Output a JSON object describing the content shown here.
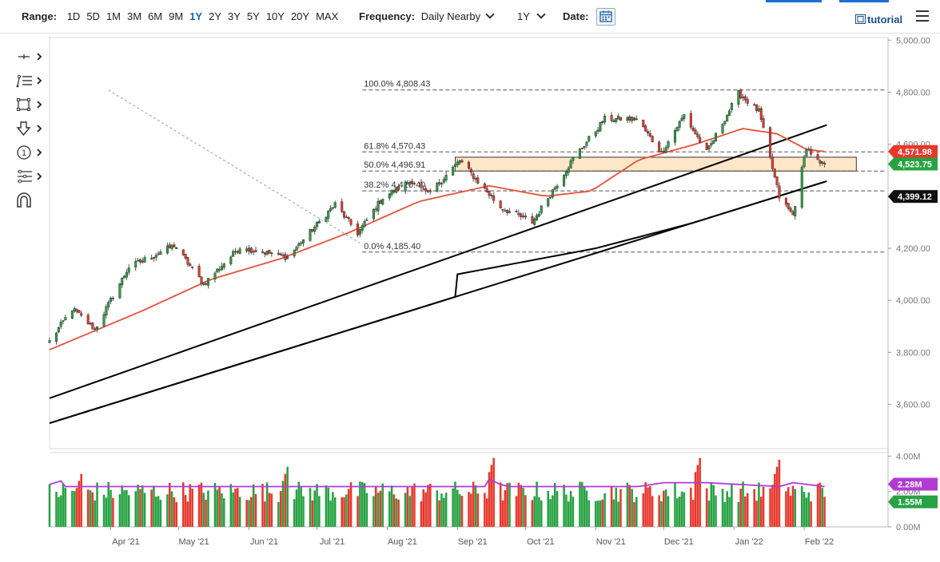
{
  "toolbar": {
    "range_label": "Range:",
    "ranges": [
      "1D",
      "5D",
      "1M",
      "3M",
      "6M",
      "9M",
      "1Y",
      "2Y",
      "3Y",
      "5Y",
      "10Y",
      "20Y",
      "MAX"
    ],
    "active_range": "1Y",
    "frequency_label": "Frequency:",
    "frequency_value": "Daily Nearby",
    "period_value": "1Y",
    "date_label": "Date:",
    "tutorial_label": "tutorial"
  },
  "tools": [
    "crosshair-tool",
    "line-tool",
    "rectangle-tool",
    "arrow-tool",
    "count-tool",
    "fibonacci-tool",
    "magnet-tool"
  ],
  "colors": {
    "up": "#27a243",
    "down": "#e8382c",
    "ma_fast": "#e8503a",
    "ma_slow": "#000000",
    "volume_avg": "#b13ad3",
    "zone_fill": "#fde7c7",
    "price_badge_red": "#e8382c",
    "price_badge_green": "#27a243",
    "price_badge_black": "#111111",
    "volume_badge": "#b13ad3"
  },
  "chart_data": {
    "type": "candlestick",
    "x_tick_labels": [
      "Apr '21",
      "May '21",
      "Jun '21",
      "Jul '21",
      "Aug '21",
      "Sep '21",
      "Oct '21",
      "Nov '21",
      "Dec '21",
      "Jan '22",
      "Feb '22"
    ],
    "y_tick_labels": [
      "5,000.00",
      "4,800.00",
      "4,600.00",
      "4,400.00",
      "4,200.00",
      "4,000.00",
      "3,800.00",
      "3,600.00"
    ],
    "y_ticks": [
      5000,
      4800,
      4600,
      4400,
      4200,
      4000,
      3800,
      3600
    ],
    "ylim": [
      3430,
      5010
    ],
    "volume_tick_labels": [
      "4.00M",
      "2.00M",
      "0.00M"
    ],
    "volume_ticks": [
      4,
      2,
      0
    ],
    "volume_ylim": [
      0,
      4.2
    ],
    "fibonacci_levels": [
      {
        "label": "100.0% 4,808.43",
        "value": 4808.43
      },
      {
        "label": "61.8% 4,570.43",
        "value": 4570.43
      },
      {
        "label": "50.0% 4,496.91",
        "value": 4496.91
      },
      {
        "label": "38.2% 4,420.40",
        "value": 4420.4
      },
      {
        "label": "0.0% 4,185.40",
        "value": 4185.4
      }
    ],
    "price_badges": [
      {
        "label": "4,571.98",
        "value": 4571.98,
        "color": "red"
      },
      {
        "label": "4,523.75",
        "value": 4523.75,
        "color": "green"
      },
      {
        "label": "4,399.12",
        "value": 4399.12,
        "color": "black"
      }
    ],
    "volume_badges": [
      {
        "label": "2.28M",
        "value": 2.28,
        "color": "purple"
      },
      {
        "label": "1.55M",
        "value": 1.55,
        "color": "green"
      }
    ],
    "zone": {
      "low": 4496.91,
      "high": 4550
    },
    "trendlines": [
      {
        "from": [
          "2021-03-05",
          3624
        ],
        "to": [
          "2022-02-11",
          4674
        ]
      },
      {
        "from": [
          "2021-03-05",
          3528
        ],
        "to": [
          "2022-02-11",
          4458
        ]
      }
    ],
    "dashed_line": {
      "from": [
        "2021-03-31",
        4808
      ],
      "to": [
        "2021-07-20",
        4220
      ]
    },
    "monthly_anchors": [
      [
        "2021-03-05",
        3842
      ],
      [
        "2021-03-15",
        3968
      ],
      [
        "2021-03-25",
        3889
      ],
      [
        "2021-04-09",
        4128
      ],
      [
        "2021-04-29",
        4211
      ],
      [
        "2021-05-12",
        4063
      ],
      [
        "2021-05-28",
        4204
      ],
      [
        "2021-06-18",
        4166
      ],
      [
        "2021-07-09",
        4369
      ],
      [
        "2021-07-19",
        4258
      ],
      [
        "2021-07-30",
        4395
      ],
      [
        "2021-08-12",
        4460
      ],
      [
        "2021-08-19",
        4405
      ],
      [
        "2021-09-02",
        4537
      ],
      [
        "2021-09-20",
        4357
      ],
      [
        "2021-10-04",
        4300
      ],
      [
        "2021-10-22",
        4544
      ],
      [
        "2021-11-05",
        4697
      ],
      [
        "2021-11-19",
        4697
      ],
      [
        "2021-11-30",
        4567
      ],
      [
        "2021-12-10",
        4712
      ],
      [
        "2021-12-20",
        4568
      ],
      [
        "2022-01-03",
        4796
      ],
      [
        "2022-01-12",
        4726
      ],
      [
        "2022-01-21",
        4397
      ],
      [
        "2022-01-27",
        4327
      ],
      [
        "2022-02-02",
        4589
      ],
      [
        "2022-02-08",
        4521
      ],
      [
        "2022-02-10",
        4523
      ]
    ],
    "ma_fast_anchors": [
      [
        "2021-03-05",
        3810
      ],
      [
        "2021-04-15",
        3960
      ],
      [
        "2021-05-15",
        4080
      ],
      [
        "2021-06-15",
        4160
      ],
      [
        "2021-07-15",
        4260
      ],
      [
        "2021-08-15",
        4380
      ],
      [
        "2021-09-15",
        4440
      ],
      [
        "2021-10-10",
        4400
      ],
      [
        "2021-10-30",
        4420
      ],
      [
        "2021-11-20",
        4540
      ],
      [
        "2021-12-15",
        4600
      ],
      [
        "2022-01-05",
        4660
      ],
      [
        "2022-01-20",
        4640
      ],
      [
        "2022-02-02",
        4580
      ],
      [
        "2022-02-10",
        4572
      ]
    ],
    "ma_slow_anchors": [
      [
        "2021-09-01",
        4100
      ],
      [
        "2021-11-01",
        4200
      ],
      [
        "2021-12-15",
        4300
      ],
      [
        "2022-01-20",
        4380
      ],
      [
        "2022-02-10",
        4399
      ]
    ],
    "volume_avg_anchors": [
      [
        "2021-03-05",
        2.4
      ],
      [
        "2021-03-10",
        2.6
      ],
      [
        "2021-03-12",
        2.28
      ],
      [
        "2021-06-18",
        2.28
      ],
      [
        "2021-06-19",
        2.5
      ],
      [
        "2021-06-21",
        2.28
      ],
      [
        "2021-09-13",
        2.28
      ],
      [
        "2021-09-15",
        2.7
      ],
      [
        "2021-09-20",
        2.4
      ],
      [
        "2021-09-24",
        2.28
      ],
      [
        "2021-11-20",
        2.28
      ],
      [
        "2021-12-01",
        2.5
      ],
      [
        "2021-12-20",
        2.5
      ],
      [
        "2022-01-21",
        2.28
      ],
      [
        "2022-01-27",
        2.5
      ],
      [
        "2022-02-10",
        2.28
      ]
    ],
    "volume_spikes": [
      [
        "2021-03-19",
        3.0
      ],
      [
        "2021-06-18",
        3.4
      ],
      [
        "2021-09-17",
        3.9
      ],
      [
        "2021-12-17",
        3.9
      ],
      [
        "2022-01-21",
        3.8
      ]
    ]
  }
}
